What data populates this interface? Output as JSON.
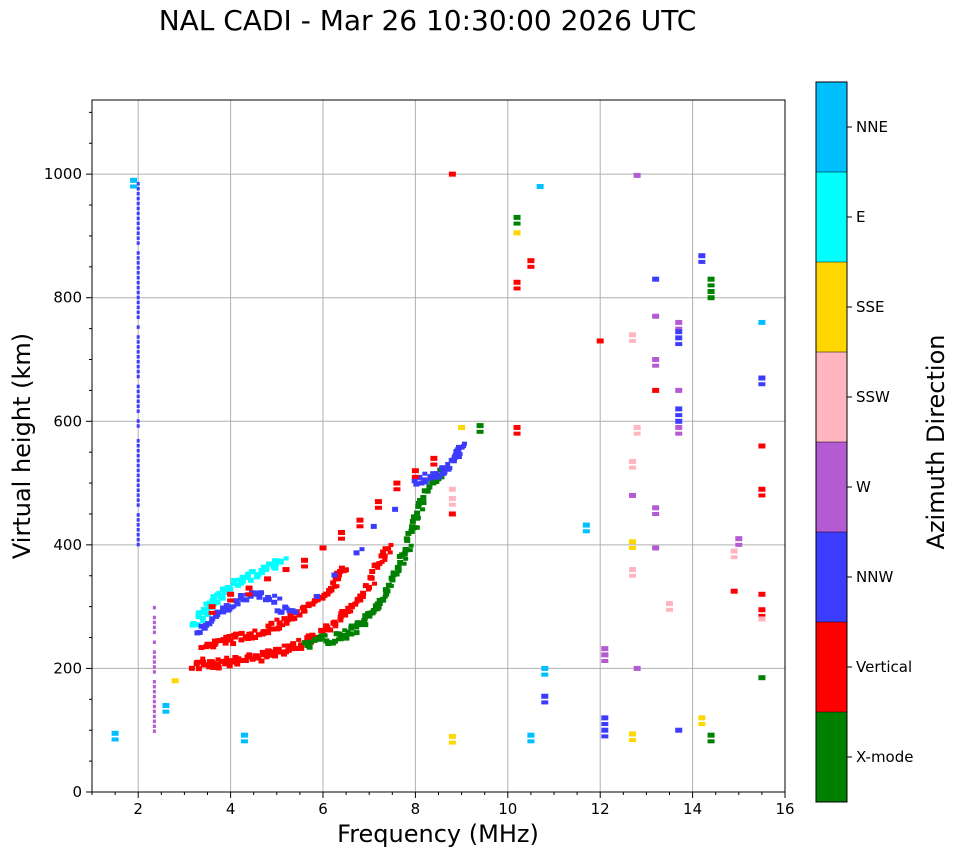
{
  "chart_data": {
    "type": "scatter",
    "title": "NAL CADI - Mar 26 10:30:00 2026 UTC",
    "xlabel": "Frequency (MHz)",
    "ylabel": "Virtual height (km)",
    "xlim": [
      1,
      16
    ],
    "ylim": [
      0,
      1120
    ],
    "xticks": [
      2,
      4,
      6,
      8,
      10,
      12,
      14,
      16
    ],
    "yticks": [
      0,
      200,
      400,
      600,
      800,
      1000
    ],
    "grid": true,
    "colorbar": {
      "label": "Azimuth Direction",
      "position": "right",
      "categories": [
        {
          "name": "X-mode",
          "color": "#008000"
        },
        {
          "name": "Vertical",
          "color": "#ff0000"
        },
        {
          "name": "NNW",
          "color": "#3c3cff"
        },
        {
          "name": "W",
          "color": "#b45ad2"
        },
        {
          "name": "SSW",
          "color": "#ffb6c1"
        },
        {
          "name": "SSE",
          "color": "#ffd700"
        },
        {
          "name": "E",
          "color": "#00ffff"
        },
        {
          "name": "NNE",
          "color": "#00bfff"
        }
      ]
    },
    "traces": [
      {
        "name": "F-layer O-mode (Vertical)",
        "category": "Vertical",
        "points": [
          [
            3.2,
            205
          ],
          [
            3.5,
            206
          ],
          [
            3.8,
            208
          ],
          [
            4.1,
            212
          ],
          [
            4.4,
            215
          ],
          [
            4.7,
            219
          ],
          [
            5.0,
            225
          ],
          [
            5.3,
            233
          ],
          [
            5.6,
            242
          ],
          [
            5.9,
            255
          ],
          [
            6.2,
            270
          ],
          [
            6.5,
            290
          ],
          [
            6.8,
            315
          ],
          [
            7.0,
            340
          ],
          [
            7.2,
            370
          ],
          [
            7.4,
            405
          ]
        ]
      },
      {
        "name": "F-layer O-mode 2nd trace (Vertical)",
        "category": "Vertical",
        "points": [
          [
            3.4,
            235
          ],
          [
            3.7,
            240
          ],
          [
            4.0,
            246
          ],
          [
            4.3,
            252
          ],
          [
            4.6,
            258
          ],
          [
            4.9,
            266
          ],
          [
            5.2,
            276
          ],
          [
            5.5,
            290
          ],
          [
            5.8,
            306
          ],
          [
            6.1,
            325
          ],
          [
            6.3,
            345
          ],
          [
            6.5,
            365
          ]
        ]
      },
      {
        "name": "X-mode trace",
        "category": "X-mode",
        "points": [
          [
            5.6,
            238
          ],
          [
            5.9,
            242
          ],
          [
            6.2,
            248
          ],
          [
            6.5,
            256
          ],
          [
            6.8,
            268
          ],
          [
            7.0,
            285
          ],
          [
            7.2,
            305
          ],
          [
            7.4,
            330
          ],
          [
            7.6,
            360
          ],
          [
            7.8,
            395
          ],
          [
            7.9,
            420
          ],
          [
            8.0,
            450
          ],
          [
            8.2,
            480
          ],
          [
            8.4,
            505
          ],
          [
            8.6,
            520
          ]
        ]
      },
      {
        "name": "Oblique cluster (E)",
        "category": "E",
        "points": [
          [
            3.2,
            270
          ],
          [
            3.4,
            290
          ],
          [
            3.6,
            305
          ],
          [
            3.8,
            320
          ],
          [
            4.0,
            335
          ],
          [
            4.3,
            345
          ],
          [
            4.6,
            355
          ],
          [
            4.9,
            365
          ],
          [
            5.1,
            372
          ]
        ]
      },
      {
        "name": "Oblique cluster (NNW)",
        "category": "NNW",
        "points": [
          [
            3.3,
            262
          ],
          [
            3.6,
            280
          ],
          [
            3.9,
            298
          ],
          [
            4.2,
            312
          ],
          [
            4.6,
            322
          ],
          [
            5.0,
            300
          ],
          [
            5.4,
            285
          ],
          [
            8.0,
            500
          ],
          [
            8.3,
            510
          ],
          [
            8.6,
            520
          ],
          [
            8.9,
            540
          ],
          [
            9.0,
            560
          ]
        ]
      },
      {
        "name": "Vertical scatter",
        "category": "Vertical",
        "points": [
          [
            3.6,
            300
          ],
          [
            4.0,
            320
          ],
          [
            4.4,
            330
          ],
          [
            4.8,
            345
          ],
          [
            5.2,
            360
          ],
          [
            5.6,
            375
          ],
          [
            6.0,
            395
          ],
          [
            6.4,
            420
          ],
          [
            6.8,
            440
          ],
          [
            7.2,
            470
          ],
          [
            7.6,
            500
          ],
          [
            8.0,
            520
          ],
          [
            8.4,
            540
          ],
          [
            8.8,
            1000
          ],
          [
            8.8,
            450
          ],
          [
            10.2,
            825
          ],
          [
            10.5,
            860
          ],
          [
            10.2,
            590
          ],
          [
            12.0,
            730
          ],
          [
            13.2,
            650
          ],
          [
            14.9,
            325
          ],
          [
            15.5,
            560
          ],
          [
            15.5,
            490
          ],
          [
            15.5,
            320
          ],
          [
            15.5,
            295
          ]
        ]
      },
      {
        "name": "Spread F (SSW)",
        "category": "SSW",
        "points": [
          [
            8.8,
            490
          ],
          [
            8.8,
            475
          ],
          [
            12.7,
            740
          ],
          [
            12.8,
            590
          ],
          [
            12.7,
            535
          ],
          [
            12.7,
            360
          ],
          [
            13.5,
            305
          ],
          [
            14.9,
            390
          ],
          [
            15.5,
            280
          ]
        ]
      },
      {
        "name": "High-frequency echoes (W)",
        "category": "W",
        "points": [
          [
            12.8,
            998
          ],
          [
            13.2,
            770
          ],
          [
            13.2,
            700
          ],
          [
            13.2,
            460
          ],
          [
            13.2,
            395
          ],
          [
            13.7,
            760
          ],
          [
            13.7,
            650
          ],
          [
            13.7,
            590
          ],
          [
            12.7,
            480
          ],
          [
            15.0,
            410
          ],
          [
            12.1,
            232
          ],
          [
            12.1,
            222
          ],
          [
            12.8,
            200
          ]
        ]
      },
      {
        "name": "High-frequency echoes (NNW)",
        "category": "NNW",
        "points": [
          [
            13.2,
            830
          ],
          [
            13.7,
            745
          ],
          [
            13.7,
            735
          ],
          [
            14.2,
            868
          ],
          [
            15.5,
            670
          ],
          [
            13.7,
            620
          ],
          [
            13.7,
            600
          ],
          [
            12.1,
            120
          ],
          [
            12.1,
            100
          ],
          [
            10.8,
            155
          ],
          [
            13.7,
            100
          ]
        ]
      },
      {
        "name": "Sporadic echoes (NNE)",
        "category": "NNE",
        "points": [
          [
            1.9,
            990
          ],
          [
            10.7,
            980
          ],
          [
            11.7,
            432
          ],
          [
            10.8,
            200
          ],
          [
            10.5,
            92
          ],
          [
            4.3,
            92
          ],
          [
            1.5,
            95
          ],
          [
            2.6,
            140
          ],
          [
            15.5,
            760
          ]
        ]
      },
      {
        "name": "Sporadic echoes (SSE)",
        "category": "SSE",
        "points": [
          [
            10.2,
            905
          ],
          [
            9.0,
            590
          ],
          [
            12.7,
            405
          ],
          [
            2.8,
            180
          ],
          [
            8.8,
            90
          ],
          [
            14.2,
            120
          ],
          [
            12.7,
            94
          ]
        ]
      },
      {
        "name": "Sporadic echoes (X-mode)",
        "category": "X-mode",
        "points": [
          [
            10.2,
            930
          ],
          [
            14.4,
            830
          ],
          [
            14.4,
            810
          ],
          [
            14.4,
            800
          ],
          [
            15.5,
            185
          ],
          [
            14.4,
            92
          ],
          [
            9.4,
            593
          ]
        ]
      }
    ],
    "vertical_streaks": [
      {
        "freq": 2.0,
        "from": 400,
        "to": 1010,
        "category": "NNW"
      },
      {
        "freq": 2.35,
        "from": 90,
        "to": 305,
        "category": "W"
      }
    ]
  }
}
